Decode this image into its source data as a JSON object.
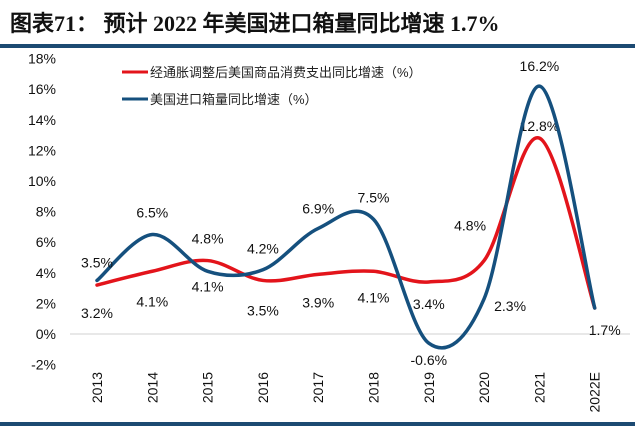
{
  "title": "图表71：  预计 2022 年美国进口箱量同比增速 1.7%",
  "chart_data": {
    "type": "line",
    "title": "",
    "xlabel": "",
    "ylabel": "",
    "categories": [
      "2013",
      "2014",
      "2015",
      "2016",
      "2017",
      "2018",
      "2019",
      "2020",
      "2021",
      "2022E"
    ],
    "ylim": [
      -2,
      18
    ],
    "yticks": [
      "-2%",
      "0%",
      "2%",
      "4%",
      "6%",
      "8%",
      "10%",
      "12%",
      "14%",
      "16%",
      "18%"
    ],
    "ytick_values": [
      -2,
      0,
      2,
      4,
      6,
      8,
      10,
      12,
      14,
      16,
      18
    ],
    "grid": false,
    "legend_position": "top-left",
    "series": [
      {
        "name": "经通胀调整后美国商品消费支出同比增速（%）",
        "color": "#e3141b",
        "values": [
          3.2,
          4.1,
          4.8,
          3.5,
          3.9,
          4.1,
          3.4,
          4.8,
          12.8,
          1.7
        ],
        "labels": [
          "3.2%",
          "4.1%",
          "4.8%",
          "3.5%",
          "3.9%",
          "4.1%",
          "3.4%",
          "4.8%",
          "12.8%",
          "1.7%"
        ]
      },
      {
        "name": "美国进口箱量同比增速（%）",
        "color": "#15507e",
        "values": [
          3.5,
          6.5,
          4.1,
          4.2,
          6.9,
          7.5,
          -0.6,
          2.3,
          16.2,
          1.7
        ],
        "labels": [
          "3.5%",
          "6.5%",
          "4.1%",
          "4.2%",
          "6.9%",
          "7.5%",
          "-0.6%",
          "2.3%",
          "16.2%",
          ""
        ]
      }
    ]
  }
}
